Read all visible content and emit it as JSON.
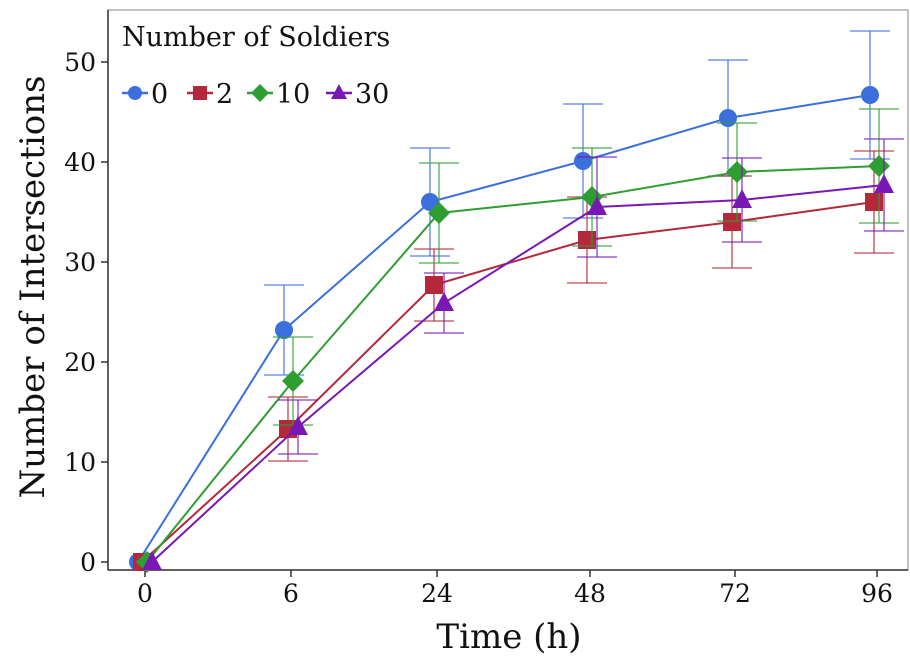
{
  "chart_data": {
    "type": "line",
    "xlabel": "Time (h)",
    "ylabel": "Number of Intersections",
    "categories": [
      "0",
      "6",
      "24",
      "48",
      "72",
      "96"
    ],
    "ylim": [
      0,
      55
    ],
    "yticks": [
      "0",
      "10",
      "20",
      "30",
      "40",
      "50"
    ],
    "grid": false,
    "legend": {
      "title": "Number of Soldiers",
      "position": "top-left"
    },
    "series": [
      {
        "name": "0",
        "color": "#3b6fdc",
        "marker": "circle",
        "values": [
          0,
          23.2,
          36.0,
          40.1,
          44.4,
          46.7
        ],
        "errors": [
          0,
          4.5,
          5.4,
          5.7,
          5.8,
          6.4
        ]
      },
      {
        "name": "2",
        "color": "#b5283b",
        "marker": "square",
        "values": [
          0,
          13.3,
          27.7,
          32.2,
          34.0,
          36.0
        ],
        "errors": [
          0,
          3.2,
          3.6,
          4.3,
          4.6,
          5.1
        ]
      },
      {
        "name": "10",
        "color": "#2e9e33",
        "marker": "diamond",
        "values": [
          0,
          18.1,
          34.9,
          36.5,
          39.0,
          39.6
        ],
        "errors": [
          0,
          4.4,
          5.0,
          4.9,
          4.9,
          5.7
        ]
      },
      {
        "name": "30",
        "color": "#7a18b5",
        "marker": "triangle",
        "values": [
          0,
          13.5,
          25.9,
          35.5,
          36.2,
          37.7
        ],
        "errors": [
          0,
          2.7,
          3.0,
          5.0,
          4.2,
          4.6
        ]
      }
    ]
  }
}
